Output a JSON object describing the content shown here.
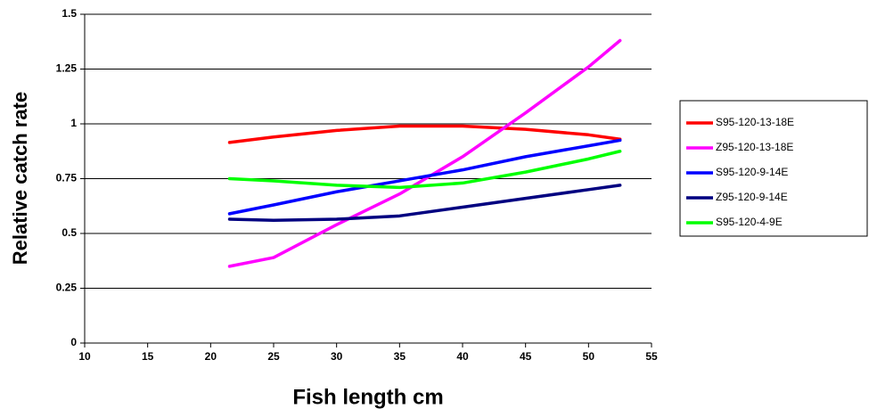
{
  "chart_data": {
    "type": "line",
    "x_label": "Fish length cm",
    "y_label": "Relative catch rate",
    "x": [
      21.5,
      25,
      30,
      35,
      40,
      45,
      50,
      52.5
    ],
    "series": [
      {
        "name": "S95-120-13-18E",
        "color": "#ff0000",
        "values": [
          0.915,
          0.94,
          0.97,
          0.99,
          0.99,
          0.975,
          0.95,
          0.93
        ]
      },
      {
        "name": "Z95-120-13-18E",
        "color": "#ff00ff",
        "values": [
          0.35,
          0.39,
          0.54,
          0.68,
          0.85,
          1.05,
          1.26,
          1.38
        ]
      },
      {
        "name": "S95-120-9-14E",
        "color": "#0000ff",
        "values": [
          0.59,
          0.63,
          0.69,
          0.74,
          0.79,
          0.85,
          0.9,
          0.925
        ]
      },
      {
        "name": "Z95-120-9-14E",
        "color": "#000080",
        "values": [
          0.565,
          0.56,
          0.565,
          0.58,
          0.62,
          0.66,
          0.7,
          0.72
        ]
      },
      {
        "name": "S95-120-4-9E",
        "color": "#00ff00",
        "values": [
          0.75,
          0.74,
          0.72,
          0.71,
          0.73,
          0.78,
          0.84,
          0.875
        ]
      }
    ],
    "xlim": [
      10,
      55
    ],
    "xticks": [
      10,
      15,
      20,
      25,
      30,
      35,
      40,
      45,
      50,
      55
    ],
    "ylim": [
      0,
      1.5
    ],
    "yticks": [
      0,
      0.25,
      0.5,
      0.75,
      1,
      1.25,
      1.5
    ],
    "grid": true,
    "legend": "right"
  }
}
